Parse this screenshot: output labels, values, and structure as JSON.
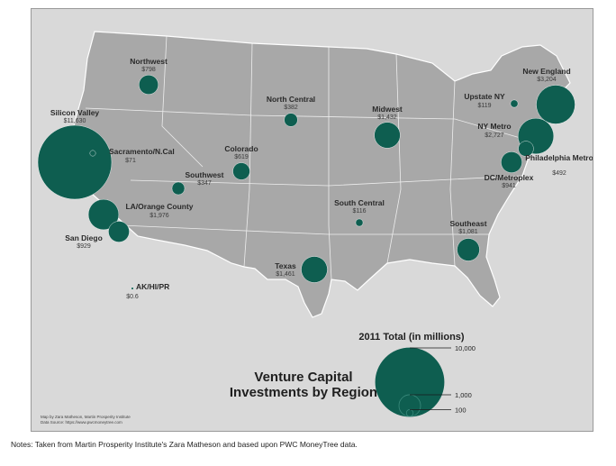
{
  "map": {
    "title_line1": "Venture Capital",
    "title_line2": "Investments by Region",
    "credit_line1": "Map by Zara Matheson, Martin Prosperity Institute",
    "credit_line2": "Data Source: https://www.pwcmoneytree.com",
    "colors": {
      "bubble": "#0e5e50",
      "land": "#a8a8a8",
      "background": "#d9d9d9",
      "border": "#ffffff"
    },
    "regions": [
      {
        "name": "Silicon Valley",
        "value": "$11,630",
        "amount": 11630
      },
      {
        "name": "Sacramento/N.Cal",
        "value": "$71",
        "amount": 71
      },
      {
        "name": "Northwest",
        "value": "$798",
        "amount": 798
      },
      {
        "name": "North Central",
        "value": "$382",
        "amount": 382
      },
      {
        "name": "Midwest",
        "value": "$1,432",
        "amount": 1432
      },
      {
        "name": "Upstate NY",
        "value": "$119",
        "amount": 119
      },
      {
        "name": "New England",
        "value": "$3,204",
        "amount": 3204
      },
      {
        "name": "NY Metro",
        "value": "$2,727",
        "amount": 2727
      },
      {
        "name": "Philadelphia Metro",
        "value": "$492",
        "amount": 492
      },
      {
        "name": "DC/Metroplex",
        "value": "$941",
        "amount": 941
      },
      {
        "name": "Colorado",
        "value": "$619",
        "amount": 619
      },
      {
        "name": "Southwest",
        "value": "$347",
        "amount": 347
      },
      {
        "name": "LA/Orange County",
        "value": "$1,976",
        "amount": 1976
      },
      {
        "name": "San Diego",
        "value": "$929",
        "amount": 929
      },
      {
        "name": "South Central",
        "value": "$116",
        "amount": 116
      },
      {
        "name": "Southeast",
        "value": "$1,081",
        "amount": 1081
      },
      {
        "name": "Texas",
        "value": "$1,461",
        "amount": 1461
      },
      {
        "name": "AK/HI/PR",
        "value": "$0.6",
        "amount": 0.6
      }
    ],
    "legend": {
      "title": "2011 Total (in millions)",
      "items": [
        {
          "label": "10,000",
          "amount": 10000
        },
        {
          "label": "1,000",
          "amount": 1000
        },
        {
          "label": "100",
          "amount": 100
        }
      ]
    }
  },
  "notes": "Notes:  Taken from Martin Prosperity Institute's Zara Matheson and based upon PWC MoneyTree data."
}
